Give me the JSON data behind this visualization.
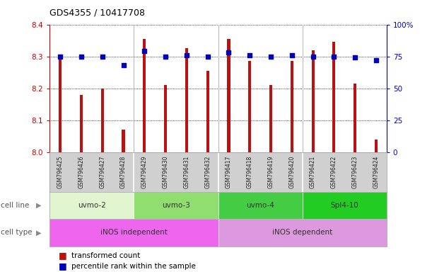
{
  "title": "GDS4355 / 10417708",
  "samples": [
    "GSM796425",
    "GSM796426",
    "GSM796427",
    "GSM796428",
    "GSM796429",
    "GSM796430",
    "GSM796431",
    "GSM796432",
    "GSM796417",
    "GSM796418",
    "GSM796419",
    "GSM796420",
    "GSM796421",
    "GSM796422",
    "GSM796423",
    "GSM796424"
  ],
  "red_values": [
    8.29,
    8.18,
    8.2,
    8.07,
    8.355,
    8.21,
    8.325,
    8.255,
    8.355,
    8.285,
    8.21,
    8.285,
    8.32,
    8.345,
    8.215,
    8.04
  ],
  "blue_values": [
    75,
    75,
    75,
    68,
    79,
    75,
    76,
    75,
    78,
    76,
    75,
    76,
    75,
    75,
    74,
    72
  ],
  "ylim_left": [
    8.0,
    8.4
  ],
  "ylim_right": [
    0,
    100
  ],
  "yticks_left": [
    8.0,
    8.1,
    8.2,
    8.3,
    8.4
  ],
  "yticks_right": [
    0,
    25,
    50,
    75,
    100
  ],
  "cell_lines": [
    {
      "label": "uvmo-2",
      "start": 0,
      "end": 4,
      "color": "#e0f5d0"
    },
    {
      "label": "uvmo-3",
      "start": 4,
      "end": 8,
      "color": "#90dd70"
    },
    {
      "label": "uvmo-4",
      "start": 8,
      "end": 12,
      "color": "#44cc44"
    },
    {
      "label": "Spl4-10",
      "start": 12,
      "end": 16,
      "color": "#22cc22"
    }
  ],
  "cell_types": [
    {
      "label": "iNOS independent",
      "start": 0,
      "end": 8,
      "color": "#ee66ee"
    },
    {
      "label": "iNOS dependent",
      "start": 8,
      "end": 16,
      "color": "#dd99dd"
    }
  ],
  "bar_color": "#bb1111",
  "dot_color": "#0000bb",
  "legend_red_label": "transformed count",
  "legend_blue_label": "percentile rank within the sample",
  "tick_color_left": "#cc0000",
  "tick_color_right": "#0000cc",
  "xlabel_bg": "#d0d0d0",
  "group_borders": [
    4,
    8,
    12
  ]
}
